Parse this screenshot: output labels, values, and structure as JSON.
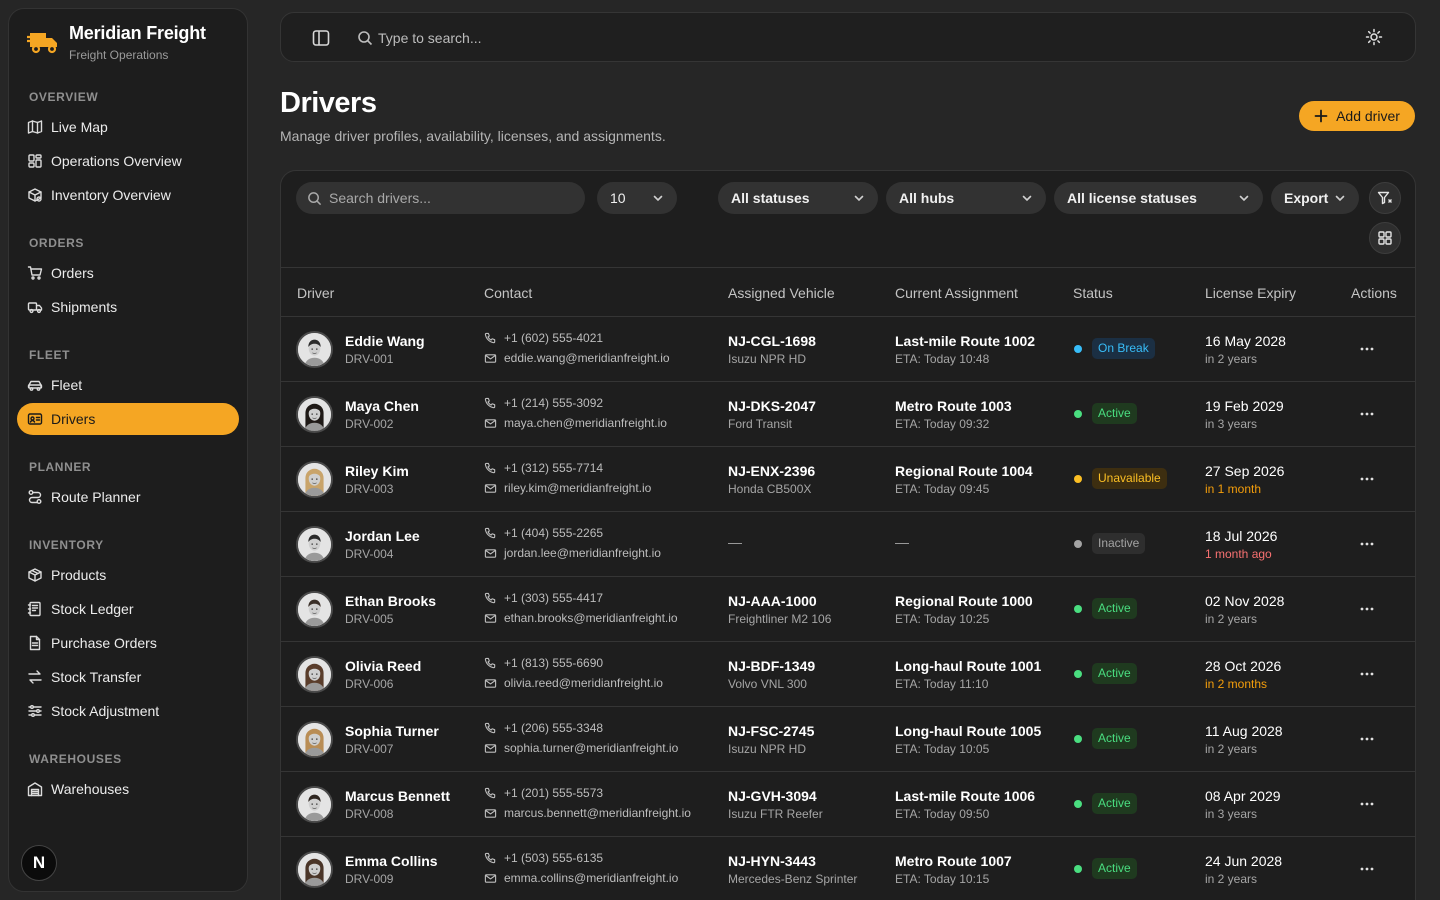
{
  "brand": {
    "name": "Meridian Freight",
    "subtitle": "Freight Operations"
  },
  "sidebar": {
    "sections": [
      {
        "title": "OVERVIEW",
        "items": [
          {
            "label": "Live Map",
            "icon": "map-icon"
          },
          {
            "label": "Operations Overview",
            "icon": "dashboard-icon"
          },
          {
            "label": "Inventory Overview",
            "icon": "package-search-icon"
          }
        ]
      },
      {
        "title": "ORDERS",
        "items": [
          {
            "label": "Orders",
            "icon": "cart-icon"
          },
          {
            "label": "Shipments",
            "icon": "truck-icon"
          }
        ]
      },
      {
        "title": "FLEET",
        "items": [
          {
            "label": "Fleet",
            "icon": "car-icon"
          },
          {
            "label": "Drivers",
            "icon": "id-card-icon",
            "active": true
          }
        ]
      },
      {
        "title": "PLANNER",
        "items": [
          {
            "label": "Route Planner",
            "icon": "route-icon"
          }
        ]
      },
      {
        "title": "INVENTORY",
        "items": [
          {
            "label": "Products",
            "icon": "box-icon"
          },
          {
            "label": "Stock Ledger",
            "icon": "ledger-icon"
          },
          {
            "label": "Purchase Orders",
            "icon": "document-icon"
          },
          {
            "label": "Stock Transfer",
            "icon": "transfer-icon"
          },
          {
            "label": "Stock Adjustment",
            "icon": "sliders-icon"
          }
        ]
      },
      {
        "title": "WAREHOUSES",
        "items": [
          {
            "label": "Warehouses",
            "icon": "warehouse-icon"
          }
        ]
      }
    ],
    "badge_letter": "N"
  },
  "topbar": {
    "search_placeholder": "Type to search..."
  },
  "header": {
    "title": "Drivers",
    "subtitle": "Manage driver profiles, availability, licenses, and assignments.",
    "add_button": "Add driver"
  },
  "filters": {
    "search_placeholder": "Search drivers...",
    "page_size": "10",
    "status": "All statuses",
    "hub": "All hubs",
    "license": "All license statuses",
    "export": "Export"
  },
  "table": {
    "columns": [
      "Driver",
      "Contact",
      "Assigned Vehicle",
      "Current Assignment",
      "Status",
      "License Expiry",
      "Actions"
    ],
    "rows": [
      {
        "name": "Eddie Wang",
        "id": "DRV-001",
        "phone": "+1 (602) 555-4021",
        "email": "eddie.wang@meridianfreight.io",
        "plate": "NJ-CGL-1698",
        "model": "Isuzu NPR HD",
        "route": "Last-mile Route 1002",
        "eta": "ETA: Today 10:48",
        "status": "On Break",
        "status_kind": "break",
        "expiry": "16 May 2028",
        "relative": "in 2 years",
        "rel_kind": "normal",
        "status_color": "#38bdf8"
      },
      {
        "name": "Maya Chen",
        "id": "DRV-002",
        "phone": "+1 (214) 555-3092",
        "email": "maya.chen@meridianfreight.io",
        "plate": "NJ-DKS-2047",
        "model": "Ford Transit",
        "route": "Metro Route 1003",
        "eta": "ETA: Today 09:32",
        "status": "Active",
        "status_kind": "active",
        "expiry": "19 Feb 2029",
        "relative": "in 3 years",
        "rel_kind": "normal",
        "status_color": "#4ade80"
      },
      {
        "name": "Riley Kim",
        "id": "DRV-003",
        "phone": "+1 (312) 555-7714",
        "email": "riley.kim@meridianfreight.io",
        "plate": "NJ-ENX-2396",
        "model": "Honda CB500X",
        "route": "Regional Route 1004",
        "eta": "ETA: Today 09:45",
        "status": "Unavailable",
        "status_kind": "unavail",
        "expiry": "27 Sep 2026",
        "relative": "in 1 month",
        "rel_kind": "warn",
        "status_color": "#fbbf24"
      },
      {
        "name": "Jordan Lee",
        "id": "DRV-004",
        "phone": "+1 (404) 555-2265",
        "email": "jordan.lee@meridianfreight.io",
        "plate": "—",
        "model": "",
        "route": "—",
        "eta": "",
        "status": "Inactive",
        "status_kind": "inactive",
        "expiry": "18 Jul 2026",
        "relative": "1 month ago",
        "rel_kind": "danger",
        "status_color": "#a3a3a3"
      },
      {
        "name": "Ethan Brooks",
        "id": "DRV-005",
        "phone": "+1 (303) 555-4417",
        "email": "ethan.brooks@meridianfreight.io",
        "plate": "NJ-AAA-1000",
        "model": "Freightliner M2 106",
        "route": "Regional Route 1000",
        "eta": "ETA: Today 10:25",
        "status": "Active",
        "status_kind": "active",
        "expiry": "02 Nov 2028",
        "relative": "in 2 years",
        "rel_kind": "normal",
        "status_color": "#4ade80"
      },
      {
        "name": "Olivia Reed",
        "id": "DRV-006",
        "phone": "+1 (813) 555-6690",
        "email": "olivia.reed@meridianfreight.io",
        "plate": "NJ-BDF-1349",
        "model": "Volvo VNL 300",
        "route": "Long-haul Route 1001",
        "eta": "ETA: Today 11:10",
        "status": "Active",
        "status_kind": "active",
        "expiry": "28 Oct 2026",
        "relative": "in 2 months",
        "rel_kind": "warn",
        "status_color": "#4ade80"
      },
      {
        "name": "Sophia Turner",
        "id": "DRV-007",
        "phone": "+1 (206) 555-3348",
        "email": "sophia.turner@meridianfreight.io",
        "plate": "NJ-FSC-2745",
        "model": "Isuzu NPR HD",
        "route": "Long-haul Route 1005",
        "eta": "ETA: Today 10:05",
        "status": "Active",
        "status_kind": "active",
        "expiry": "11 Aug 2028",
        "relative": "in 2 years",
        "rel_kind": "normal",
        "status_color": "#4ade80"
      },
      {
        "name": "Marcus Bennett",
        "id": "DRV-008",
        "phone": "+1 (201) 555-5573",
        "email": "marcus.bennett@meridianfreight.io",
        "plate": "NJ-GVH-3094",
        "model": "Isuzu FTR Reefer",
        "route": "Last-mile Route 1006",
        "eta": "ETA: Today 09:50",
        "status": "Active",
        "status_kind": "active",
        "expiry": "08 Apr 2029",
        "relative": "in 3 years",
        "rel_kind": "normal",
        "status_color": "#4ade80"
      },
      {
        "name": "Emma Collins",
        "id": "DRV-009",
        "phone": "+1 (503) 555-6135",
        "email": "emma.collins@meridianfreight.io",
        "plate": "NJ-HYN-3443",
        "model": "Mercedes-Benz Sprinter",
        "route": "Metro Route 1007",
        "eta": "ETA: Today 10:15",
        "status": "Active",
        "status_kind": "active",
        "expiry": "24 Jun 2028",
        "relative": "in 2 years",
        "rel_kind": "normal",
        "status_color": "#4ade80"
      }
    ]
  },
  "colors": {
    "accent": "#f5a623",
    "background": "#262626",
    "surface": "#1e1e1e"
  }
}
